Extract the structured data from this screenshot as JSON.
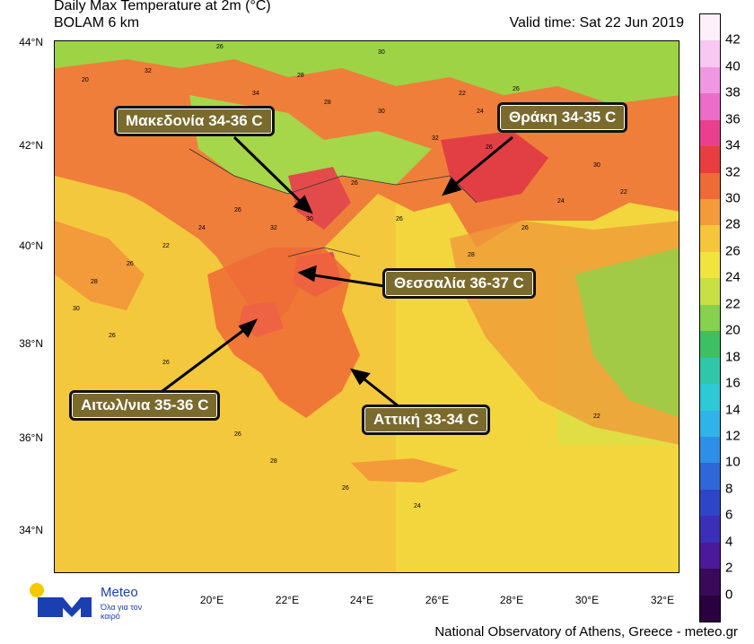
{
  "title_line1": "Daily Max Temperature at 2m (°C)",
  "title_line2": "BOLAM 6 km",
  "valid_time": "Valid time: Sat 22 Jun 2019",
  "lat_labels": [
    "44°N",
    "42°N",
    "40°N",
    "38°N",
    "36°N",
    "34°N"
  ],
  "lon_labels": [
    "20°E",
    "22°E",
    "24°E",
    "26°E",
    "28°E",
    "30°E",
    "32°E"
  ],
  "colorbar": {
    "ticks": [
      "42",
      "40",
      "38",
      "36",
      "34",
      "32",
      "30",
      "28",
      "26",
      "24",
      "22",
      "20",
      "18",
      "16",
      "14",
      "12",
      "10",
      "8",
      "6",
      "4",
      "2",
      "0"
    ],
    "colors": [
      "#fdf0fb",
      "#f8c8f2",
      "#f097e3",
      "#ec6cc9",
      "#e8408f",
      "#e83e3e",
      "#ee6a36",
      "#f39a3a",
      "#f5c53c",
      "#f2e43f",
      "#c8e044",
      "#86d14e",
      "#3cc063",
      "#2fc7a8",
      "#2ec8d6",
      "#2fb3e8",
      "#2f8fe8",
      "#2f66d8",
      "#2f45c8",
      "#3b2fb8",
      "#4a1a9a",
      "#3a0a5a",
      "#2a0040"
    ]
  },
  "callouts": [
    {
      "label": "Μακεδονία 34-36 C"
    },
    {
      "label": "Θράκη 34-35 C"
    },
    {
      "label": "Θεσσαλία 36-37 C"
    },
    {
      "label": "Αιτωλ/νια 35-36 C"
    },
    {
      "label": "Αττική 33-34 C"
    }
  ],
  "grid_values": [
    "26",
    "28",
    "30",
    "32",
    "34",
    "22",
    "20",
    "24",
    "26",
    "28",
    "30",
    "32",
    "26",
    "28",
    "30",
    "22",
    "24",
    "26",
    "28",
    "26",
    "26",
    "30",
    "32",
    "26",
    "24",
    "22",
    "26",
    "28",
    "30",
    "26",
    "26",
    "26",
    "26",
    "28",
    "26",
    "24",
    "22"
  ],
  "logo_text": "Meteo",
  "logo_sub": "Όλα για τον καιρό",
  "footer": "National Observatory of Athens, Greece - meteo.gr"
}
